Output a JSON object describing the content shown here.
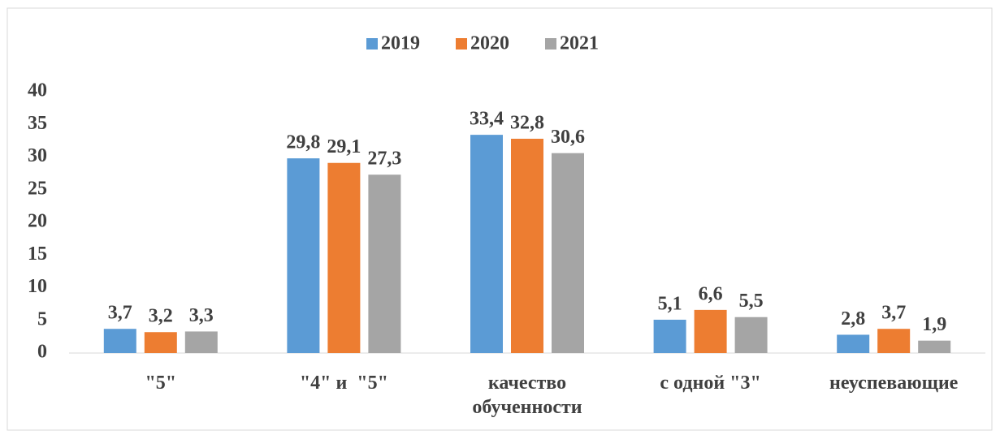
{
  "chart_data": {
    "type": "bar",
    "categories": [
      "\"5\"",
      "\"4\" и  \"5\"",
      "качество обученности",
      "с одной \"3\"",
      "неуспевающие"
    ],
    "series": [
      {
        "name": "2019",
        "color": "#5b9bd5",
        "values": [
          3.7,
          29.8,
          33.4,
          5.1,
          2.8
        ],
        "value_labels": [
          "3,7",
          "29,8",
          "33,4",
          "5,1",
          "2,8"
        ]
      },
      {
        "name": "2020",
        "color": "#ed7d31",
        "values": [
          3.2,
          29.1,
          32.8,
          6.6,
          3.7
        ],
        "value_labels": [
          "3,2",
          "29,1",
          "32,8",
          "6,6",
          "3,7"
        ]
      },
      {
        "name": "2021",
        "color": "#a5a5a5",
        "values": [
          3.3,
          27.3,
          30.6,
          5.5,
          1.9
        ],
        "value_labels": [
          "3,3",
          "27,3",
          "30,6",
          "5,5",
          "1,9"
        ]
      }
    ],
    "ylim": [
      0,
      40
    ],
    "yticks": [
      0,
      5,
      10,
      15,
      20,
      25,
      30,
      35,
      40
    ],
    "grid": false,
    "legend": "top"
  }
}
